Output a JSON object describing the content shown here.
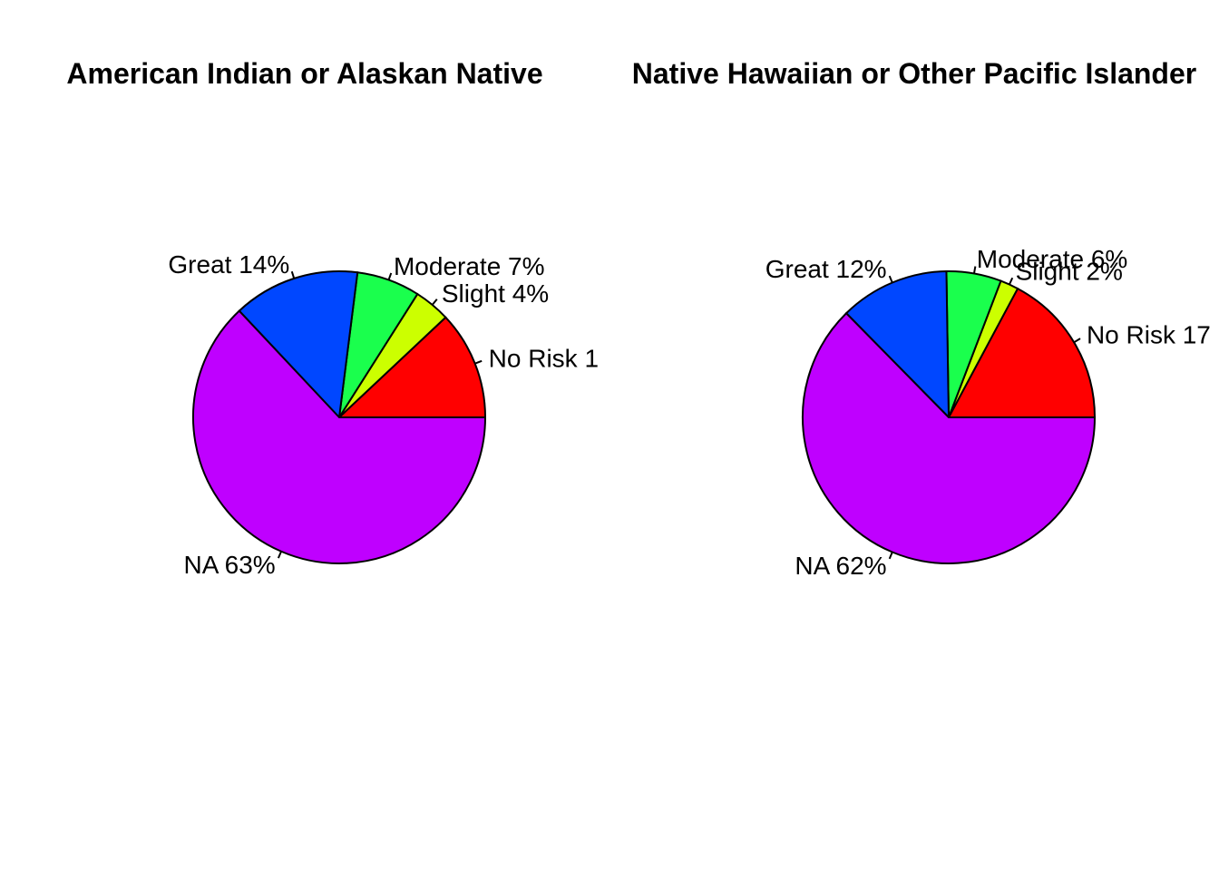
{
  "chart_data": [
    {
      "type": "pie",
      "title": "American Indian or Alaskan Native",
      "slices": [
        {
          "label": "No Risk 1",
          "value": 12,
          "color": "#FF0000"
        },
        {
          "label": "Slight 4%",
          "value": 4,
          "color": "#CCFF00"
        },
        {
          "label": "Moderate 7%",
          "value": 7,
          "color": "#1AFF4D"
        },
        {
          "label": "Great 14%",
          "value": 14,
          "color": "#0047FF"
        },
        {
          "label": "NA 63%",
          "value": 63,
          "color": "#BF00FF"
        }
      ]
    },
    {
      "type": "pie",
      "title": "Native Hawaiian or Other Pacific Islander",
      "slices": [
        {
          "label": "No Risk 17",
          "value": 17,
          "color": "#FF0000"
        },
        {
          "label": "Slight 2%",
          "value": 2,
          "color": "#CCFF00"
        },
        {
          "label": "Moderate 6%",
          "value": 6,
          "color": "#1AFF4D"
        },
        {
          "label": "Great 12%",
          "value": 12,
          "color": "#0047FF"
        },
        {
          "label": "NA 62%",
          "value": 62,
          "color": "#BF00FF"
        }
      ]
    }
  ]
}
